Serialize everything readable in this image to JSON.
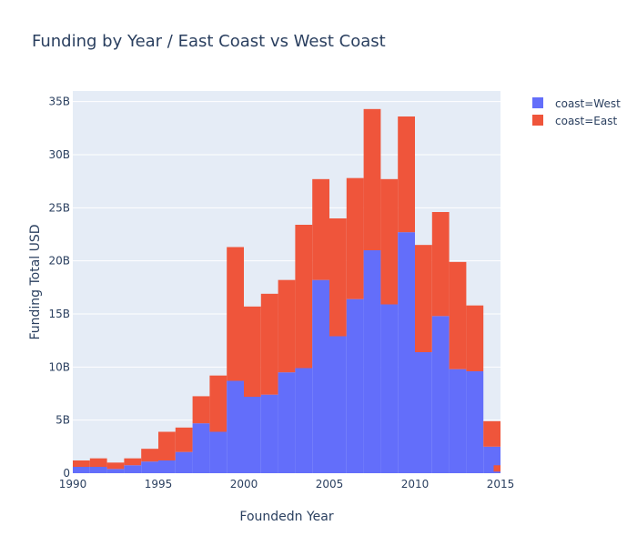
{
  "chart_data": {
    "type": "bar",
    "title": "Funding by Year / East Coast vs West Coast",
    "xlabel": "Foundedn Year",
    "ylabel": "Funding Total USD",
    "barmode": "stack",
    "bin_width": 1,
    "x_bin_starts": [
      1990,
      1991,
      1992,
      1993,
      1994,
      1995,
      1996,
      1997,
      1998,
      1999,
      2000,
      2001,
      2002,
      2003,
      2004,
      2005,
      2006,
      2007,
      2008,
      2009,
      2010,
      2011,
      2012,
      2013,
      2014
    ],
    "series": [
      {
        "name": "coast=West",
        "color": "#636efa",
        "values": [
          0.6,
          0.6,
          0.4,
          0.75,
          1.1,
          1.2,
          2.0,
          4.7,
          3.9,
          8.7,
          7.2,
          7.4,
          9.5,
          9.9,
          18.2,
          12.9,
          16.4,
          21.0,
          15.9,
          22.7,
          11.4,
          14.8,
          9.8,
          9.6,
          2.5
        ]
      },
      {
        "name": "coast=East",
        "color": "#ef553b",
        "values": [
          0.6,
          0.8,
          0.6,
          0.65,
          1.2,
          2.7,
          2.3,
          2.55,
          5.3,
          12.6,
          8.5,
          9.5,
          8.7,
          13.5,
          9.5,
          11.1,
          11.4,
          13.3,
          11.8,
          10.9,
          10.1,
          9.8,
          10.1,
          6.2,
          2.4
        ]
      }
    ],
    "last_bin": {
      "x_start": 2014.6,
      "x_end": 2015,
      "west": 0.15,
      "east": 0.6
    },
    "xlim": [
      1990,
      2015
    ],
    "ylim": [
      0,
      36
    ],
    "x_ticks": [
      1990,
      1995,
      2000,
      2005,
      2010,
      2015
    ],
    "y_ticks": [
      0,
      5,
      10,
      15,
      20,
      25,
      30,
      35
    ],
    "y_tick_labels": [
      "0",
      "5B",
      "10B",
      "15B",
      "20B",
      "25B",
      "30B",
      "35B"
    ],
    "grid": true,
    "legend_position": "top-right"
  }
}
